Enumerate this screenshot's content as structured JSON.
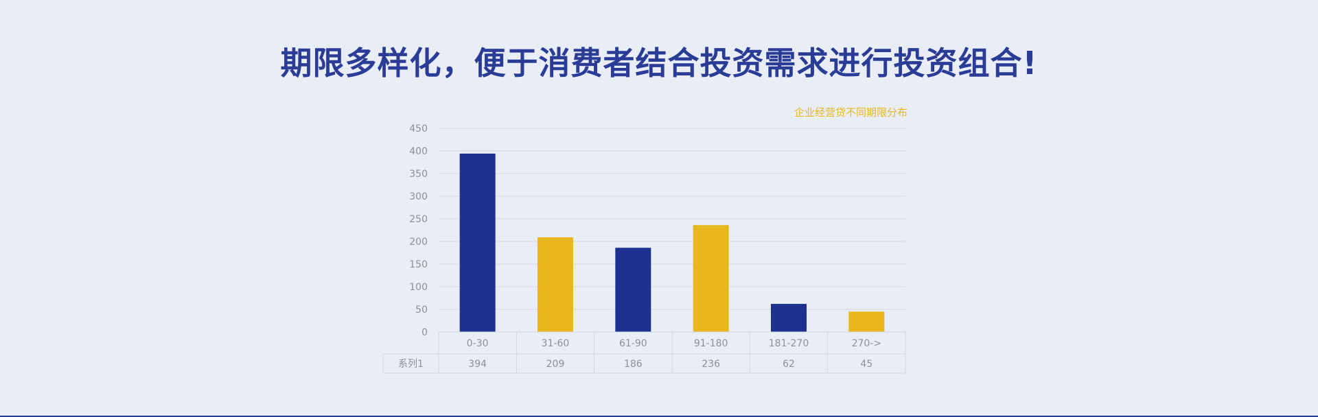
{
  "headline": "期限多样化，便于消费者结合投资需求进行投资组合!",
  "chart_data": {
    "type": "bar",
    "title": "企业经营贷不同期限分布",
    "categories": [
      "0-30",
      "31-60",
      "61-90",
      "91-180",
      "181-270",
      "270->"
    ],
    "series": [
      {
        "name": "系列1",
        "values": [
          394,
          209,
          186,
          236,
          62,
          45
        ]
      }
    ],
    "ylim": [
      0,
      450
    ],
    "yticks": [
      0,
      50,
      100,
      150,
      200,
      250,
      300,
      350,
      400,
      450
    ],
    "xlabel": "",
    "ylabel": "",
    "grid": true,
    "legend": "none",
    "data_table": true,
    "colors": [
      "#1e3190",
      "#e8b71e",
      "#1e3190",
      "#e8b71e",
      "#1e3190",
      "#e8b71e"
    ],
    "title_color": "#e8b71e"
  }
}
